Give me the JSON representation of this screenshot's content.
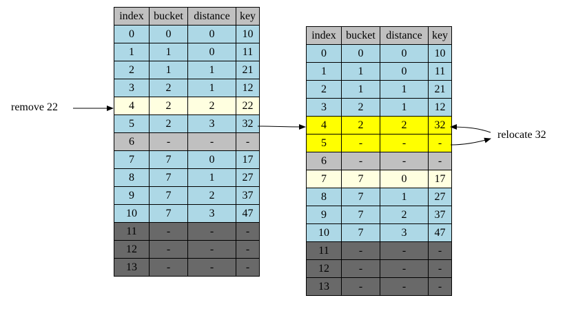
{
  "columns": [
    "index",
    "bucket",
    "distance",
    "key"
  ],
  "colors": {
    "normal": "#add8e6",
    "highlight": "#ffffe0",
    "selected": "#ffff00",
    "empty": "#c0c0c0",
    "unused": "#696969",
    "header": "#c0c0c0"
  },
  "left_table": {
    "rows": [
      {
        "cells": [
          "0",
          "0",
          "0",
          "10"
        ],
        "state": "normal"
      },
      {
        "cells": [
          "1",
          "1",
          "0",
          "11"
        ],
        "state": "normal"
      },
      {
        "cells": [
          "2",
          "1",
          "1",
          "21"
        ],
        "state": "normal"
      },
      {
        "cells": [
          "3",
          "2",
          "1",
          "12"
        ],
        "state": "normal"
      },
      {
        "cells": [
          "4",
          "2",
          "2",
          "22"
        ],
        "state": "highlight"
      },
      {
        "cells": [
          "5",
          "2",
          "3",
          "32"
        ],
        "state": "normal"
      },
      {
        "cells": [
          "6",
          "-",
          "-",
          "-"
        ],
        "state": "empty"
      },
      {
        "cells": [
          "7",
          "7",
          "0",
          "17"
        ],
        "state": "normal"
      },
      {
        "cells": [
          "8",
          "7",
          "1",
          "27"
        ],
        "state": "normal"
      },
      {
        "cells": [
          "9",
          "7",
          "2",
          "37"
        ],
        "state": "normal"
      },
      {
        "cells": [
          "10",
          "7",
          "3",
          "47"
        ],
        "state": "normal"
      },
      {
        "cells": [
          "11",
          "-",
          "-",
          "-"
        ],
        "state": "unused"
      },
      {
        "cells": [
          "12",
          "-",
          "-",
          "-"
        ],
        "state": "unused"
      },
      {
        "cells": [
          "13",
          "-",
          "-",
          "-"
        ],
        "state": "unused"
      }
    ]
  },
  "right_table": {
    "rows": [
      {
        "cells": [
          "0",
          "0",
          "0",
          "10"
        ],
        "state": "normal"
      },
      {
        "cells": [
          "1",
          "1",
          "0",
          "11"
        ],
        "state": "normal"
      },
      {
        "cells": [
          "2",
          "1",
          "1",
          "21"
        ],
        "state": "normal"
      },
      {
        "cells": [
          "3",
          "2",
          "1",
          "12"
        ],
        "state": "normal"
      },
      {
        "cells": [
          "4",
          "2",
          "2",
          "32"
        ],
        "state": "selected"
      },
      {
        "cells": [
          "5",
          "-",
          "-",
          "-"
        ],
        "state": "selected"
      },
      {
        "cells": [
          "6",
          "-",
          "-",
          "-"
        ],
        "state": "empty"
      },
      {
        "cells": [
          "7",
          "7",
          "0",
          "17"
        ],
        "state": "highlight"
      },
      {
        "cells": [
          "8",
          "7",
          "1",
          "27"
        ],
        "state": "normal"
      },
      {
        "cells": [
          "9",
          "7",
          "2",
          "37"
        ],
        "state": "normal"
      },
      {
        "cells": [
          "10",
          "7",
          "3",
          "47"
        ],
        "state": "normal"
      },
      {
        "cells": [
          "11",
          "-",
          "-",
          "-"
        ],
        "state": "unused"
      },
      {
        "cells": [
          "12",
          "-",
          "-",
          "-"
        ],
        "state": "unused"
      },
      {
        "cells": [
          "13",
          "-",
          "-",
          "-"
        ],
        "state": "unused"
      }
    ]
  },
  "annotations": {
    "remove_label": "remove 22",
    "relocate_label": "relocate 32"
  }
}
